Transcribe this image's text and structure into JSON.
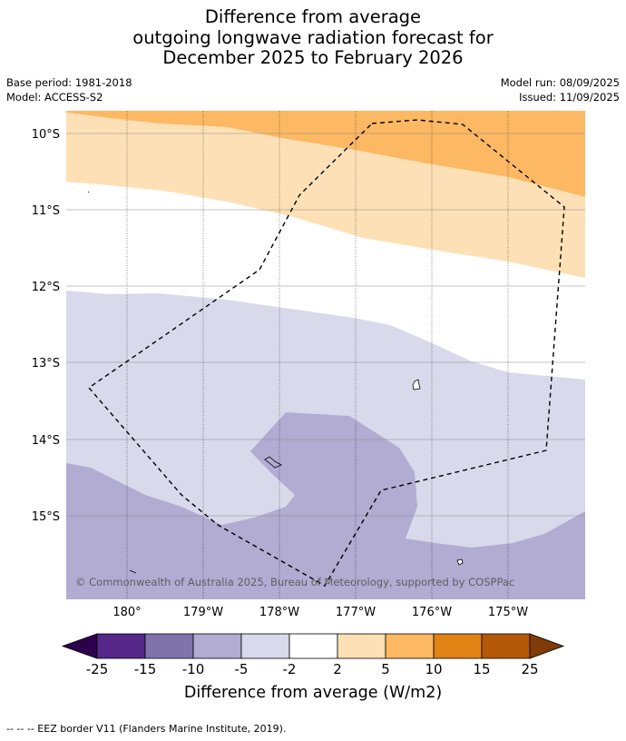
{
  "title_lines": [
    "Difference from average",
    "outgoing longwave radiation forecast for",
    "December 2025 to February 2026"
  ],
  "meta": {
    "base_period": "Base period: 1981-2018",
    "model": "Model: ACCESS-S2",
    "model_run": "Model run: 08/09/2025",
    "issued": "Issued: 11/09/2025"
  },
  "map": {
    "lat_labels": [
      "10°S",
      "11°S",
      "12°S",
      "13°S",
      "14°S",
      "15°S"
    ],
    "lon_labels": [
      "180°",
      "179°W",
      "178°W",
      "177°W",
      "176°W",
      "175°W"
    ],
    "copyright": "© Commonwealth of Australia 2025, Bureau of Meteorology, supported by COSPPac",
    "region_colors": {
      "plus_5_to_10": "#fdb863",
      "plus_2_to_5": "#fee0b6",
      "neutral": "#ffffff",
      "minus_2_to_5": "#d8daeb",
      "minus_5_to_10": "#b2abd2"
    }
  },
  "colorbar": {
    "colors": [
      "#542788",
      "#8073ac",
      "#b2abd2",
      "#d8daeb",
      "#ffffff",
      "#fee0b6",
      "#fdb863",
      "#e08214",
      "#b35806"
    ],
    "under_color": "#2d004b",
    "over_color": "#7f3b08",
    "tick_labels": [
      "-25",
      "-15",
      "-10",
      "-5",
      "-2",
      "2",
      "5",
      "10",
      "15",
      "25"
    ],
    "title": "Difference from average (W/m2)"
  },
  "footer": "--  --  -- EEZ border V11 (Flanders Marine Institute, 2019)."
}
